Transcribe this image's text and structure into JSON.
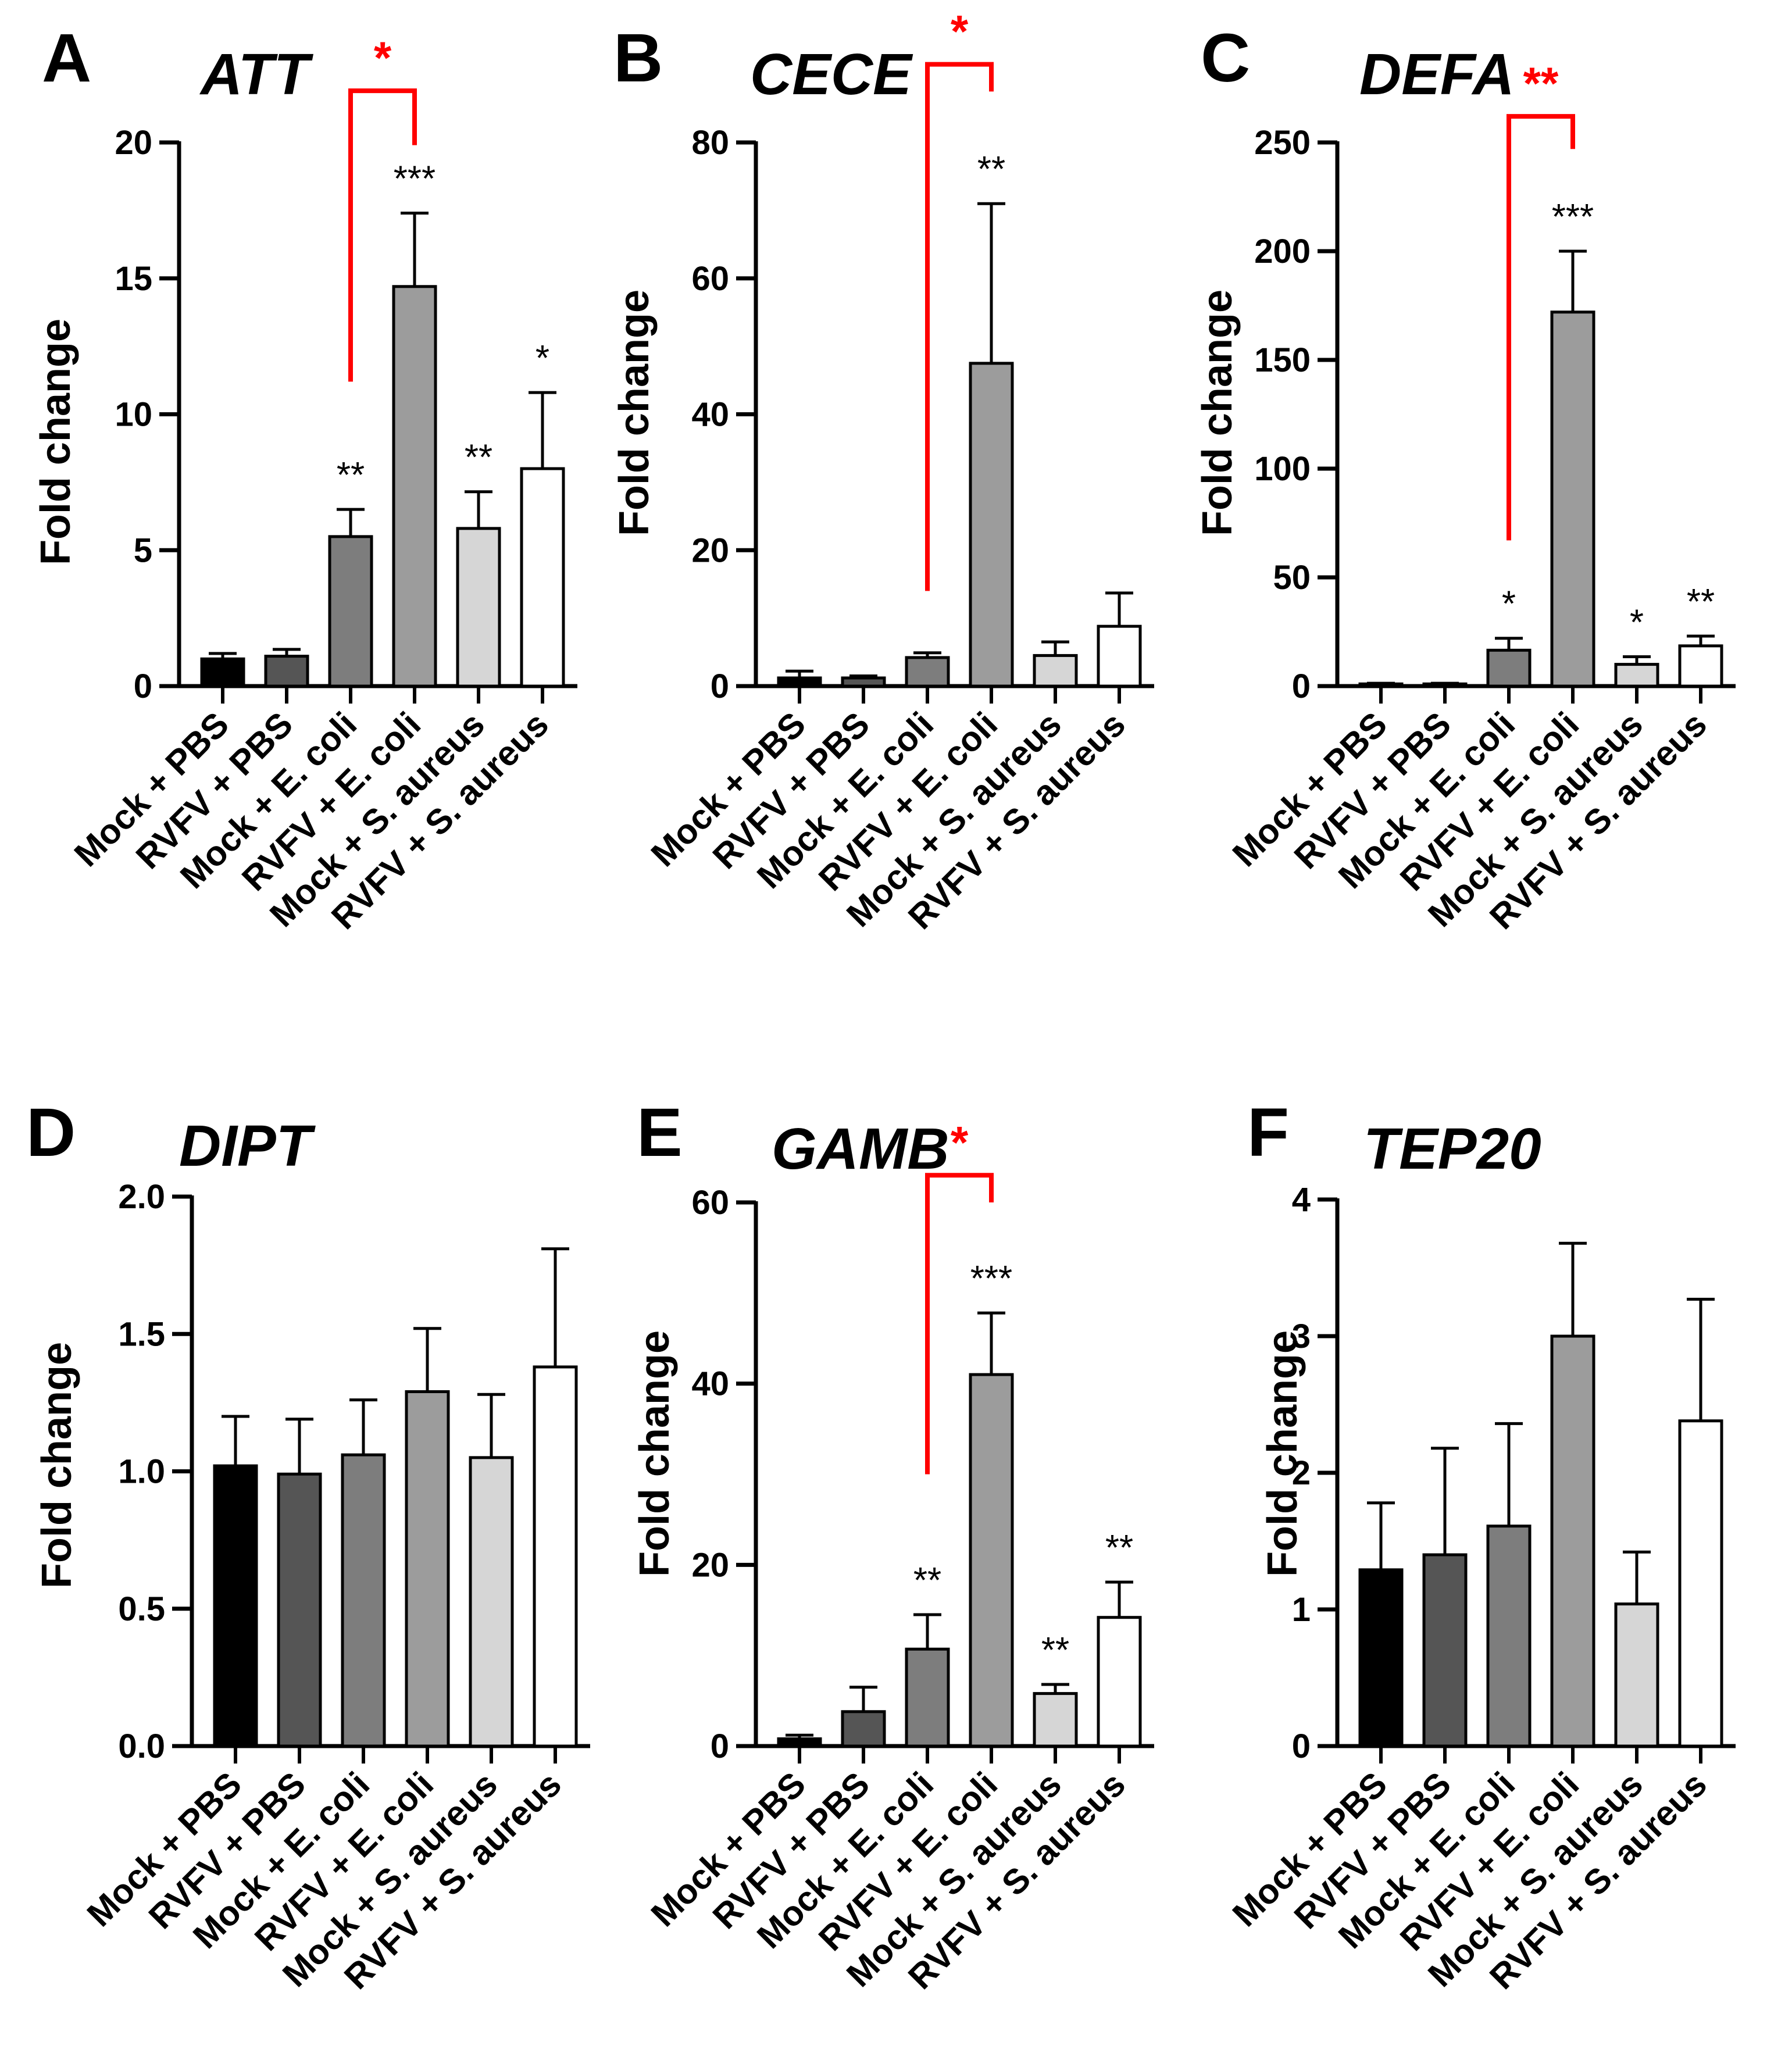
{
  "figure": {
    "categories": [
      "Mock + PBS",
      "RVFV + PBS",
      "Mock + E. coli",
      "RVFV + E. coli",
      "Mock + S. aureus",
      "RVFV + S. aureus"
    ],
    "bar_colors": [
      "#000000",
      "#555555",
      "#7d7d7d",
      "#9c9c9c",
      "#d6d6d6",
      "#ffffff"
    ],
    "bracket_color": "#ff0000",
    "ylabel": "Fold change"
  },
  "chart_data": [
    {
      "type": "bar",
      "panel": "A",
      "title": "ATT",
      "ylabel": "Fold change",
      "categories": [
        "Mock + PBS",
        "RVFV + PBS",
        "Mock + E. coli",
        "RVFV + E. coli",
        "Mock + S. aureus",
        "RVFV + S. aureus"
      ],
      "values": [
        1.0,
        1.1,
        5.5,
        14.7,
        5.8,
        8.0
      ],
      "errors": [
        0.2,
        0.25,
        1.0,
        2.7,
        1.35,
        2.8
      ],
      "ylim": [
        0,
        20
      ],
      "yticks": [
        0,
        5,
        10,
        15,
        20
      ],
      "ytick_labels": [
        "0",
        "5",
        "10",
        "15",
        "20"
      ],
      "significance": [
        "",
        "",
        "**",
        "***",
        "**",
        "*"
      ],
      "bracket": {
        "from": 2,
        "to": 3,
        "label": "*",
        "from_value": 11.2,
        "to_value": 19.9,
        "top_value": 21.9
      }
    },
    {
      "type": "bar",
      "panel": "B",
      "title": "CECE",
      "ylabel": "Fold change",
      "categories": [
        "Mock + PBS",
        "RVFV + PBS",
        "Mock + E. coli",
        "RVFV + E. coli",
        "Mock + S. aureus",
        "RVFV + S. aureus"
      ],
      "values": [
        1.2,
        1.2,
        4.2,
        47.5,
        4.5,
        8.8
      ],
      "errors": [
        1.0,
        0.3,
        0.7,
        23.5,
        2.0,
        4.9
      ],
      "ylim": [
        0,
        80
      ],
      "yticks": [
        0,
        20,
        40,
        60,
        80
      ],
      "ytick_labels": [
        "0",
        "20",
        "40",
        "60",
        "80"
      ],
      "significance": [
        "",
        "",
        "",
        "**",
        "",
        ""
      ],
      "bracket": {
        "from": 2,
        "to": 3,
        "label": "*",
        "from_value": 14,
        "to_value": 87.5,
        "top_value": 91.5
      }
    },
    {
      "type": "bar",
      "panel": "C",
      "title": "DEFA",
      "ylabel": "Fold change",
      "categories": [
        "Mock + PBS",
        "RVFV + PBS",
        "Mock + E. coli",
        "RVFV + E. coli",
        "Mock + S. aureus",
        "RVFV + S. aureus"
      ],
      "values": [
        1.0,
        1.0,
        16.5,
        172,
        10,
        18.5
      ],
      "errors": [
        0.3,
        0.3,
        5.5,
        28,
        3.5,
        4.5
      ],
      "ylim": [
        0,
        250
      ],
      "yticks": [
        0,
        50,
        100,
        150,
        200,
        250
      ],
      "ytick_labels": [
        "0",
        "50",
        "100",
        "150",
        "200",
        "250"
      ],
      "significance": [
        "",
        "",
        "*",
        "***",
        "*",
        "**"
      ],
      "bracket": {
        "from": 2,
        "to": 3,
        "label": "**",
        "from_value": 67,
        "to_value": 247,
        "top_value": 262
      }
    },
    {
      "type": "bar",
      "panel": "D",
      "title": "DIPT",
      "ylabel": "Fold change",
      "categories": [
        "Mock + PBS",
        "RVFV + PBS",
        "Mock + E. coli",
        "RVFV + E. coli",
        "Mock + S. aureus",
        "RVFV + S. aureus"
      ],
      "values": [
        1.02,
        0.99,
        1.06,
        1.29,
        1.05,
        1.38
      ],
      "errors": [
        0.18,
        0.2,
        0.2,
        0.23,
        0.23,
        0.43
      ],
      "ylim": [
        0,
        2
      ],
      "yticks": [
        0,
        0.5,
        1.0,
        1.5,
        2.0
      ],
      "ytick_labels": [
        "0.0",
        "0.5",
        "1.0",
        "1.5",
        "2.0"
      ],
      "significance": [
        "",
        "",
        "",
        "",
        "",
        ""
      ]
    },
    {
      "type": "bar",
      "panel": "E",
      "title": "GAMB",
      "ylabel": "Fold change",
      "categories": [
        "Mock + PBS",
        "RVFV + PBS",
        "Mock + E. coli",
        "RVFV + E. coli",
        "Mock + S. aureus",
        "RVFV + S. aureus"
      ],
      "values": [
        0.8,
        3.8,
        10.7,
        41,
        5.8,
        14.2
      ],
      "errors": [
        0.4,
        2.7,
        3.8,
        6.8,
        1.0,
        3.9
      ],
      "ylim": [
        0,
        60
      ],
      "yticks": [
        0,
        20,
        40,
        60
      ],
      "ytick_labels": [
        "0",
        "20",
        "40",
        "60"
      ],
      "significance": [
        "",
        "",
        "**",
        "***",
        "**",
        "**"
      ],
      "bracket": {
        "from": 2,
        "to": 3,
        "label": "*",
        "from_value": 30,
        "to_value": 60,
        "top_value": 63
      }
    },
    {
      "type": "bar",
      "panel": "F",
      "title": "TEP20",
      "ylabel": "Fold change",
      "categories": [
        "Mock + PBS",
        "RVFV + PBS",
        "Mock + E. coli",
        "RVFV + E. coli",
        "Mock + S. aureus",
        "RVFV + S. aureus"
      ],
      "values": [
        1.29,
        1.4,
        1.61,
        3.0,
        1.04,
        2.38
      ],
      "errors": [
        0.49,
        0.78,
        0.75,
        0.68,
        0.38,
        0.89
      ],
      "ylim": [
        0,
        4
      ],
      "yticks": [
        0,
        1,
        2,
        3,
        4
      ],
      "ytick_labels": [
        "0",
        "1",
        "2",
        "3",
        "4"
      ],
      "significance": [
        "",
        "",
        "",
        "",
        "",
        ""
      ]
    }
  ]
}
